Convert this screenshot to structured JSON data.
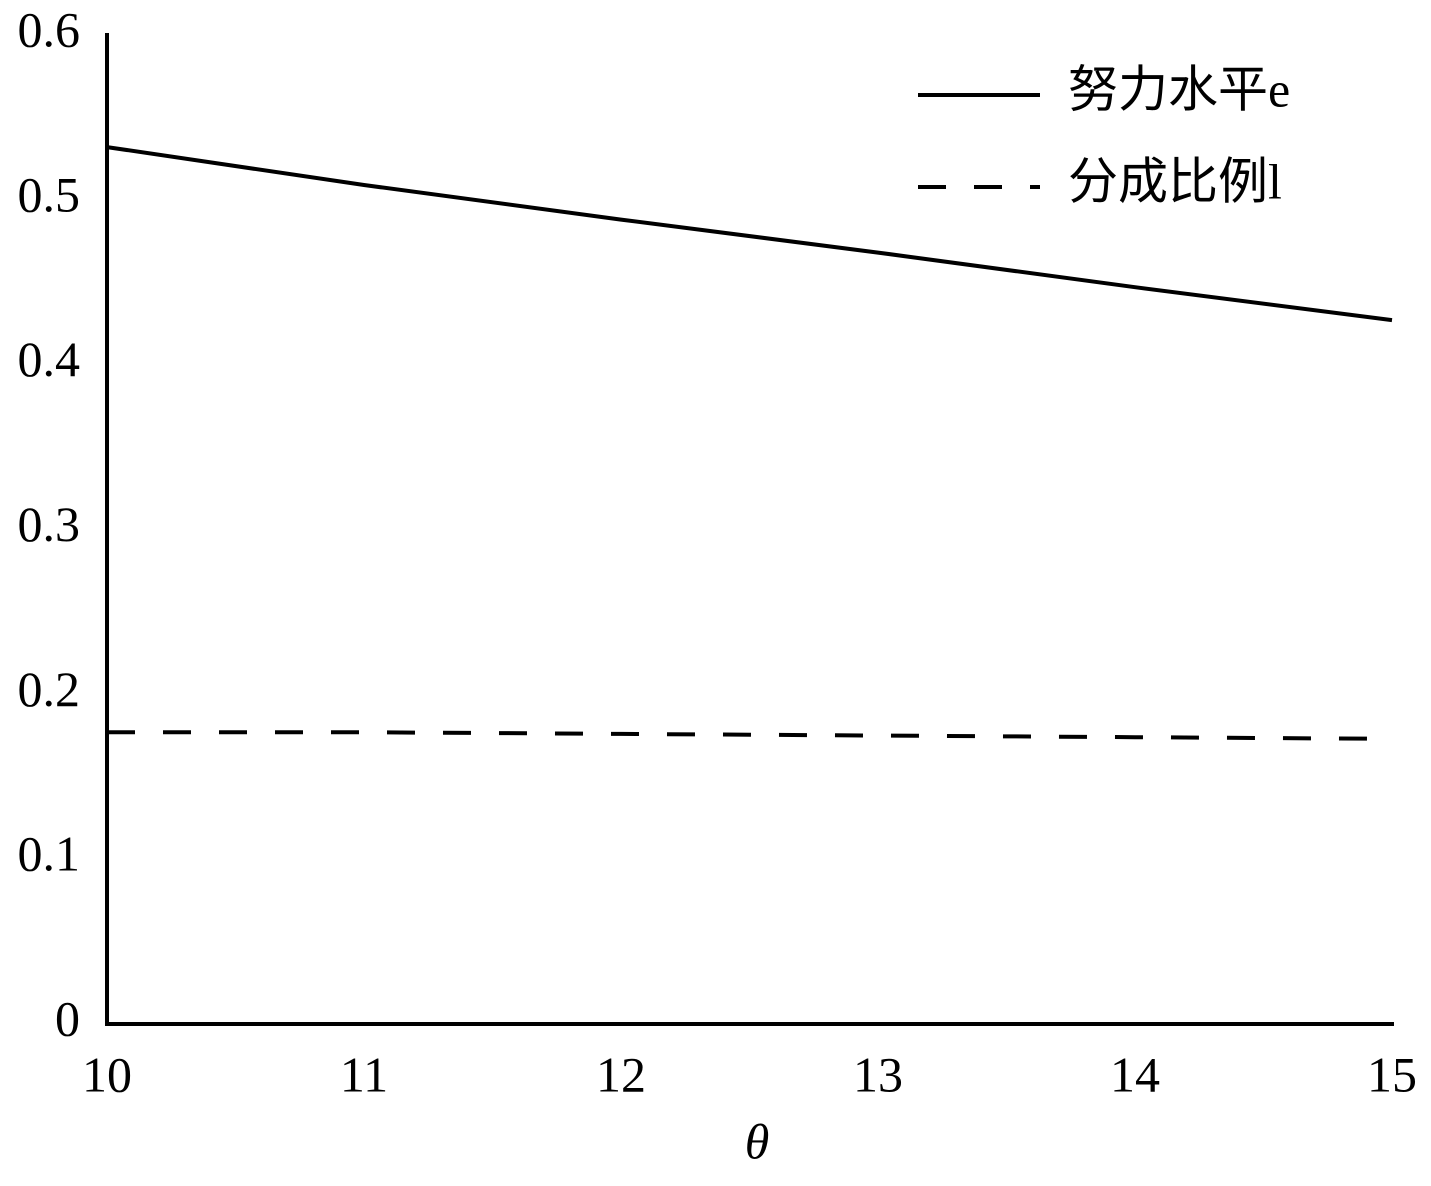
{
  "chart_data": {
    "type": "line",
    "x": [
      10,
      11,
      12,
      13,
      14,
      15
    ],
    "series": [
      {
        "name": "努力水平e",
        "color": "#000000",
        "dash": "solid",
        "values": [
          0.532,
          0.509,
          0.488,
          0.468,
          0.447,
          0.427
        ]
      },
      {
        "name": "分成比例l",
        "color": "#000000",
        "dash": "dashed",
        "values": [
          0.177,
          0.177,
          0.176,
          0.175,
          0.174,
          0.173
        ]
      }
    ],
    "x_label": "θ",
    "xlim": [
      10,
      15
    ],
    "xticks": [
      10,
      11,
      12,
      13,
      14,
      15
    ],
    "ylim": [
      0,
      0.6
    ],
    "yticks": [
      0,
      0.1,
      0.2,
      0.3,
      0.4,
      0.5,
      0.6
    ],
    "grid": false,
    "legend": "upper right"
  }
}
